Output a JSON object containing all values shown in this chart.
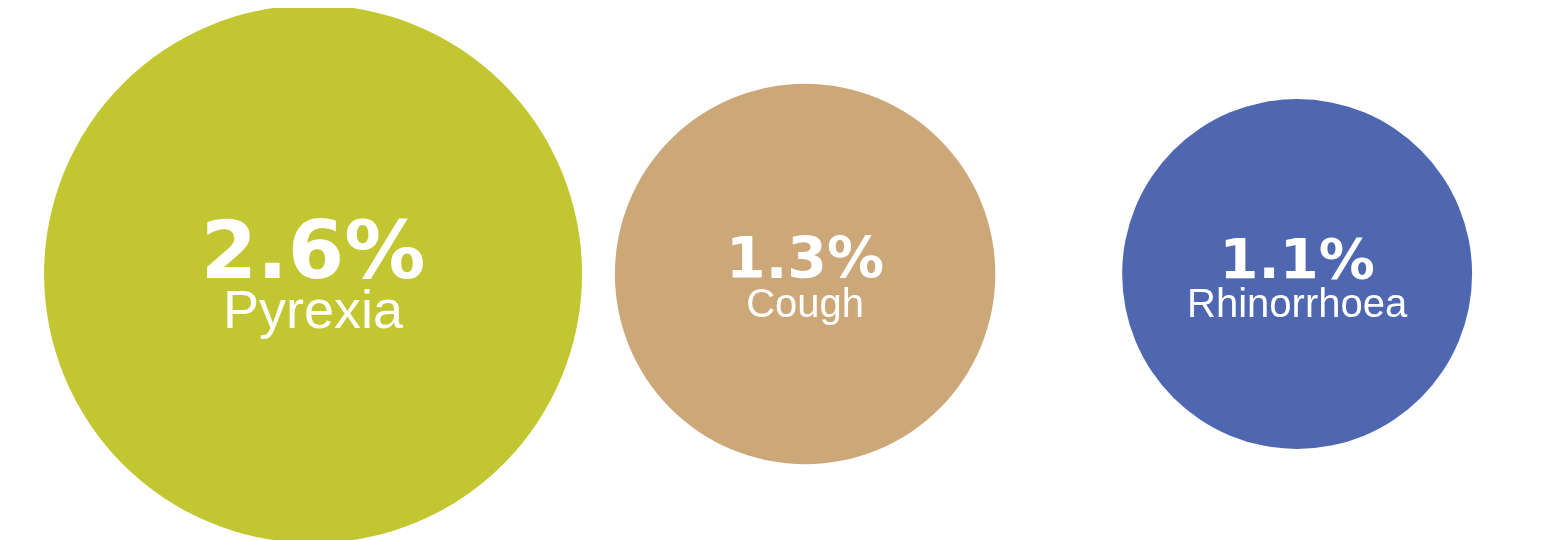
{
  "chart_data": {
    "type": "other",
    "categories": [
      "Pyrexia",
      "Cough",
      "Rhinorrhoea"
    ],
    "values": [
      2.6,
      1.3,
      1.1
    ],
    "value_labels": [
      "2.6%",
      "1.3%",
      "1.1%"
    ],
    "colors": [
      "#c2c731",
      "#cca778",
      "#4f67b0"
    ]
  }
}
